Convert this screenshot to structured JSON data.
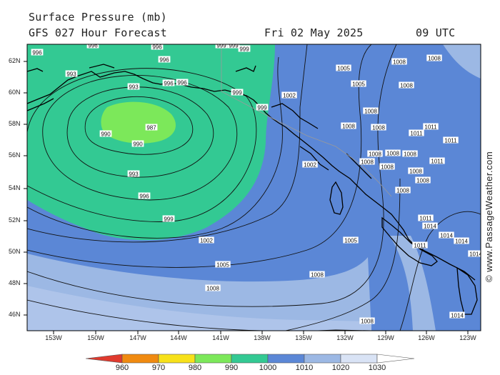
{
  "header": {
    "title": "Surface Pressure (mb)",
    "subtitle": "GFS 027 Hour Forecast",
    "date": "Fri 02 May 2025",
    "time": "09 UTC"
  },
  "axes": {
    "lat_labels": [
      "62N",
      "60N",
      "58N",
      "56N",
      "54N",
      "52N",
      "50N",
      "48N",
      "46N"
    ],
    "lon_labels": [
      "153W",
      "150W",
      "147W",
      "144W",
      "141W",
      "138W",
      "135W",
      "132W",
      "129W",
      "126W",
      "123W"
    ]
  },
  "legend": {
    "values": [
      "960",
      "970",
      "980",
      "990",
      "1000",
      "1010",
      "1020",
      "1030"
    ],
    "colors": [
      "#e03a2e",
      "#f08a10",
      "#f7e11a",
      "#7ce85a",
      "#33c993",
      "#5b87d6",
      "#9cb8e4",
      "#d9e3f5",
      "#ffffff"
    ]
  },
  "credit": "© www.PassageWeather.com",
  "isobar_labels": [
    {
      "t": "996"
    },
    {
      "t": "996"
    },
    {
      "t": "996"
    },
    {
      "t": "996"
    },
    {
      "t": "999"
    },
    {
      "t": "999"
    },
    {
      "t": "999"
    },
    {
      "t": "993"
    },
    {
      "t": "993"
    },
    {
      "t": "996"
    },
    {
      "t": "996"
    },
    {
      "t": "999"
    },
    {
      "t": "999"
    },
    {
      "t": "990"
    },
    {
      "t": "987"
    },
    {
      "t": "990"
    },
    {
      "t": "993"
    },
    {
      "t": "996"
    },
    {
      "t": "999"
    },
    {
      "t": "1002"
    },
    {
      "t": "1002"
    },
    {
      "t": "1002"
    },
    {
      "t": "1005"
    },
    {
      "t": "1005"
    },
    {
      "t": "1005"
    },
    {
      "t": "1005"
    },
    {
      "t": "1008"
    },
    {
      "t": "1008"
    },
    {
      "t": "1008"
    },
    {
      "t": "1008"
    },
    {
      "t": "1008"
    },
    {
      "t": "1008"
    },
    {
      "t": "1008"
    },
    {
      "t": "1008"
    },
    {
      "t": "1008"
    },
    {
      "t": "1008"
    },
    {
      "t": "1008"
    },
    {
      "t": "1008"
    },
    {
      "t": "1008"
    },
    {
      "t": "1008"
    },
    {
      "t": "1011"
    },
    {
      "t": "1011"
    },
    {
      "t": "1011"
    },
    {
      "t": "1011"
    },
    {
      "t": "1011"
    },
    {
      "t": "1014"
    },
    {
      "t": "1014"
    },
    {
      "t": "1014"
    },
    {
      "t": "1014"
    },
    {
      "t": "1014"
    },
    {
      "t": "1011"
    },
    {
      "t": "1008"
    },
    {
      "t": "1008"
    },
    {
      "t": "1008"
    }
  ]
}
